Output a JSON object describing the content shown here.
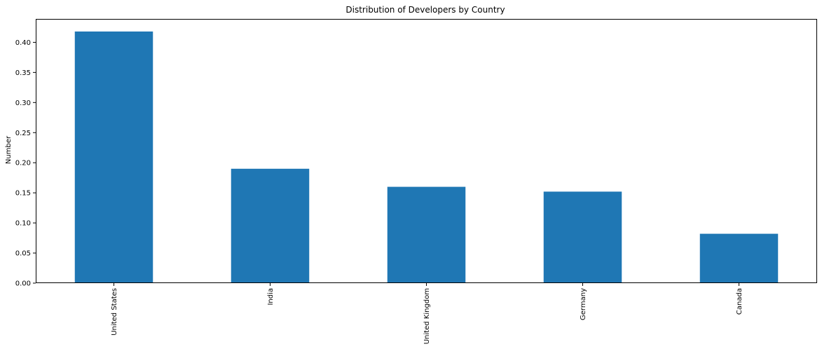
{
  "chart_data": {
    "type": "bar",
    "title": "Distribution of Developers by Country",
    "xlabel": "",
    "ylabel": "Number",
    "categories": [
      "United States",
      "India",
      "United Kingdom",
      "Germany",
      "Canada"
    ],
    "values": [
      0.418,
      0.19,
      0.16,
      0.152,
      0.082
    ],
    "ylim": [
      0,
      0.4389
    ],
    "yticks": [
      "0.00",
      "0.05",
      "0.10",
      "0.15",
      "0.20",
      "0.25",
      "0.30",
      "0.35",
      "0.40"
    ],
    "bar_color": "#1f77b4",
    "grid": false,
    "legend": "none"
  }
}
